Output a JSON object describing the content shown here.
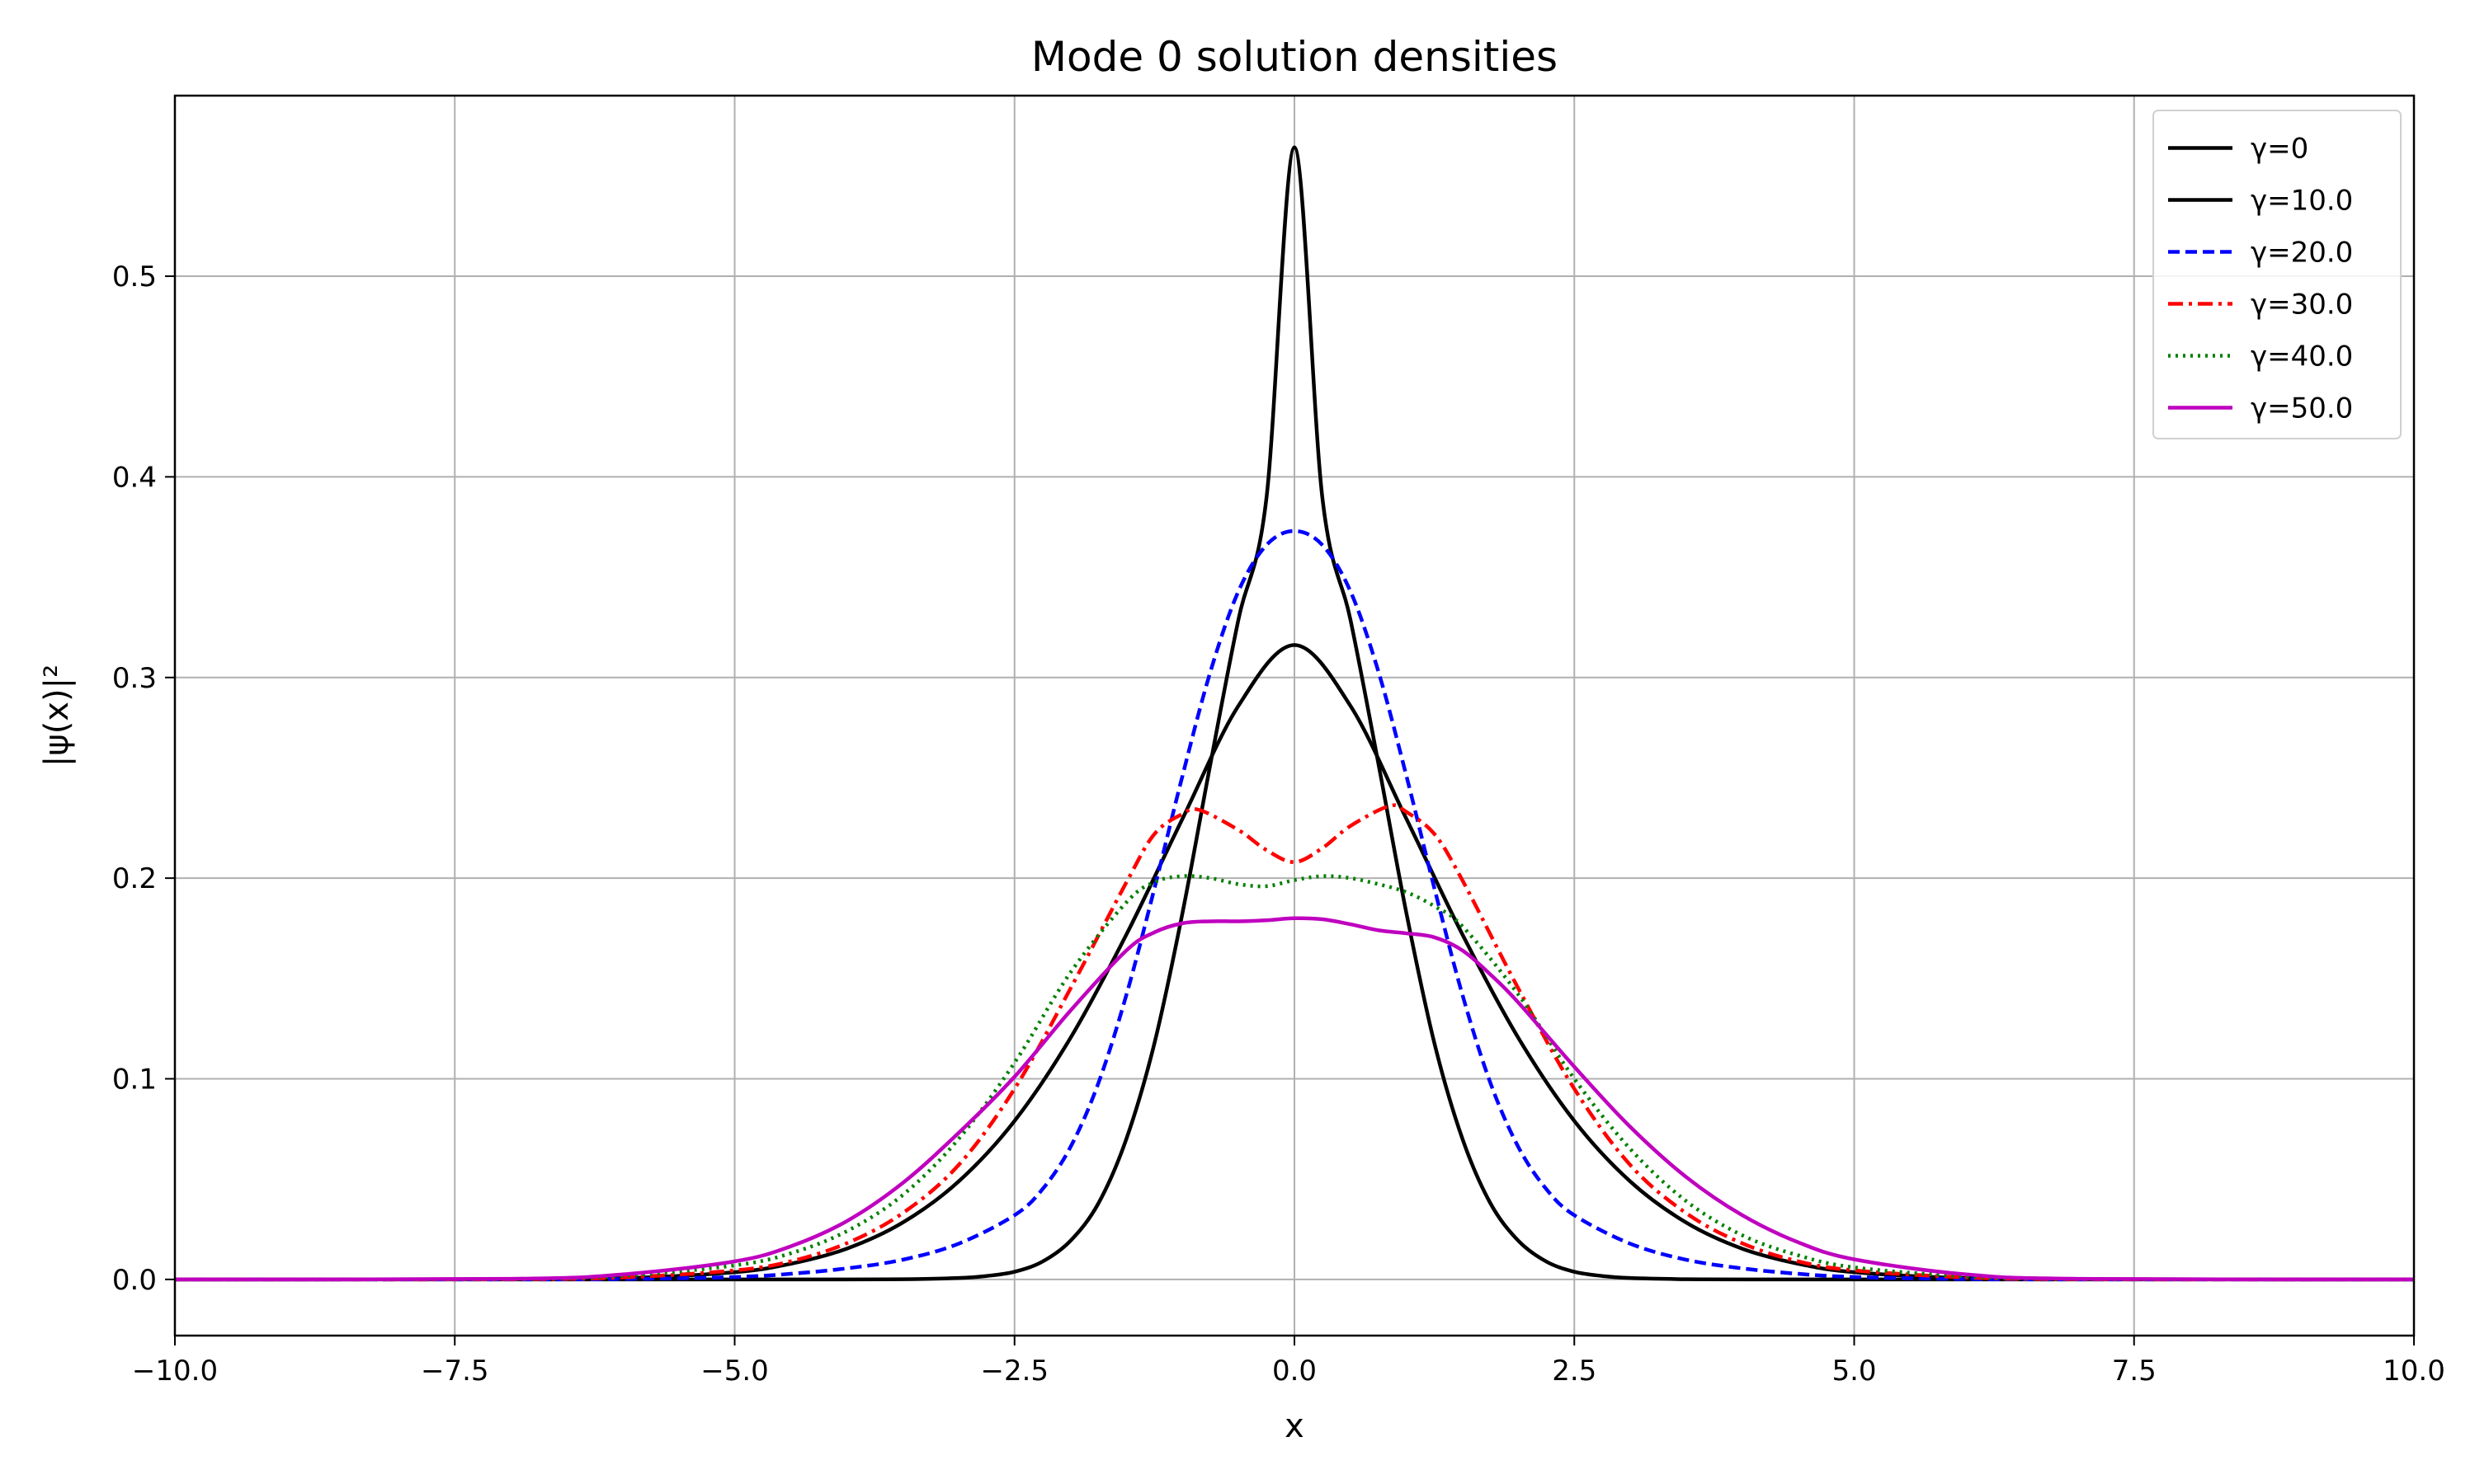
{
  "chart_data": {
    "type": "line",
    "title": "Mode 0 solution densities",
    "xlabel": "x",
    "ylabel": "|ψ(x)|²",
    "xlim": [
      -10,
      10
    ],
    "ylim": [
      -0.028,
      0.59
    ],
    "xticks": [
      -10,
      -7.5,
      -5,
      -2.5,
      0,
      2.5,
      5,
      7.5,
      10
    ],
    "xtick_labels": [
      "−10.0",
      "−7.5",
      "−5.0",
      "−2.5",
      "0.0",
      "2.5",
      "5.0",
      "7.5",
      "10.0"
    ],
    "yticks": [
      0,
      0.1,
      0.2,
      0.3,
      0.4,
      0.5
    ],
    "ytick_labels": [
      "0.0",
      "0.1",
      "0.2",
      "0.3",
      "0.4",
      "0.5"
    ],
    "grid": true,
    "legend_position": "top-right",
    "series": [
      {
        "name": "γ=0",
        "color": "#000000",
        "dash": "solid",
        "x": [
          -10,
          -6,
          -5,
          -4,
          -3.5,
          -3,
          -2.75,
          -2.5,
          -2.25,
          -2,
          -1.75,
          -1.5,
          -1.25,
          -1,
          -0.75,
          -0.5,
          -0.25,
          0,
          0.25,
          0.5,
          0.75,
          1,
          1.25,
          1.5,
          1.75,
          2,
          2.25,
          2.5,
          2.75,
          3,
          3.5,
          4,
          5,
          6,
          10
        ],
        "y": [
          0,
          0,
          0,
          0,
          0.0001,
          0.0007,
          0.0017,
          0.0038,
          0.0089,
          0.0193,
          0.038,
          0.0702,
          0.1178,
          0.1826,
          0.2571,
          0.3289,
          0.3894,
          0.5642,
          0.3894,
          0.3289,
          0.2571,
          0.1826,
          0.1178,
          0.0702,
          0.038,
          0.0193,
          0.0089,
          0.0038,
          0.0017,
          0.0007,
          0.0001,
          0,
          0,
          0,
          0
        ]
      },
      {
        "name": "γ=10.0",
        "color": "#000000",
        "dash": "solid",
        "x": [
          -10,
          -7,
          -6,
          -5,
          -4.5,
          -4,
          -3.5,
          -3,
          -2.5,
          -2,
          -1.5,
          -1,
          -0.5,
          0,
          0.5,
          1,
          1.5,
          2,
          2.5,
          3,
          3.5,
          4,
          4.5,
          5,
          6,
          7,
          10
        ],
        "y": [
          0,
          0.0001,
          0.0006,
          0.0036,
          0.0078,
          0.0153,
          0.0283,
          0.0488,
          0.079,
          0.1204,
          0.172,
          0.2296,
          0.2859,
          0.3162,
          0.2859,
          0.2296,
          0.172,
          0.1204,
          0.079,
          0.0488,
          0.0283,
          0.0153,
          0.0078,
          0.0036,
          0.0006,
          0.0001,
          0
        ]
      },
      {
        "name": "γ=20.0",
        "color": "#0000ff",
        "dash": "dashed",
        "x": [
          -10,
          -7,
          -6,
          -5,
          -4.5,
          -4,
          -3.5,
          -3,
          -2.5,
          -2.25,
          -2,
          -1.75,
          -1.5,
          -1.25,
          -1,
          -0.75,
          -0.5,
          -0.25,
          0,
          0.25,
          0.5,
          0.75,
          1,
          1.25,
          1.5,
          1.75,
          2,
          2.25,
          2.5,
          3,
          3.5,
          4,
          4.5,
          5,
          6,
          7,
          10
        ],
        "y": [
          0,
          0,
          0.0002,
          0.0012,
          0.0028,
          0.0055,
          0.0098,
          0.0178,
          0.032,
          0.045,
          0.066,
          0.098,
          0.142,
          0.195,
          0.251,
          0.303,
          0.343,
          0.366,
          0.373,
          0.366,
          0.343,
          0.303,
          0.251,
          0.195,
          0.142,
          0.098,
          0.066,
          0.045,
          0.032,
          0.0178,
          0.0098,
          0.0055,
          0.0028,
          0.0012,
          0.0002,
          0,
          0
        ]
      },
      {
        "name": "γ=30.0",
        "color": "#ff0000",
        "dash": "dashdot",
        "x": [
          -10,
          -7,
          -6,
          -5,
          -4.5,
          -4,
          -3.5,
          -3,
          -2.5,
          -2,
          -1.5,
          -1.25,
          -1,
          -0.85,
          -0.5,
          -0.25,
          0,
          0.25,
          0.5,
          0.85,
          1,
          1.25,
          1.5,
          2,
          2.5,
          3,
          3.5,
          4,
          4.5,
          5,
          6,
          7,
          10
        ],
        "y": [
          0,
          0.0001,
          0.001,
          0.0045,
          0.009,
          0.018,
          0.033,
          0.057,
          0.095,
          0.145,
          0.198,
          0.222,
          0.232,
          0.234,
          0.224,
          0.214,
          0.208,
          0.215,
          0.226,
          0.236,
          0.233,
          0.222,
          0.199,
          0.145,
          0.095,
          0.057,
          0.033,
          0.018,
          0.009,
          0.0045,
          0.001,
          0.0001,
          0
        ]
      },
      {
        "name": "γ=40.0",
        "color": "#008000",
        "dash": "dotted",
        "x": [
          -10,
          -7,
          -6,
          -5,
          -4.5,
          -4,
          -3.5,
          -3,
          -2.5,
          -2,
          -1.5,
          -1.25,
          -1,
          -0.75,
          -0.5,
          -0.25,
          0,
          0.25,
          0.5,
          0.75,
          1,
          1.25,
          1.5,
          2,
          2.5,
          3,
          3.5,
          4,
          4.5,
          5,
          6,
          7,
          10
        ],
        "y": [
          0,
          0.0002,
          0.0018,
          0.007,
          0.013,
          0.024,
          0.042,
          0.07,
          0.108,
          0.153,
          0.188,
          0.198,
          0.201,
          0.2,
          0.197,
          0.196,
          0.199,
          0.201,
          0.2,
          0.197,
          0.193,
          0.186,
          0.176,
          0.142,
          0.1,
          0.065,
          0.039,
          0.022,
          0.012,
          0.006,
          0.0015,
          0.0002,
          0
        ]
      },
      {
        "name": "γ=50.0",
        "color": "#bf00bf",
        "dash": "solid",
        "x": [
          -10,
          -7,
          -6,
          -5,
          -4.5,
          -4,
          -3.5,
          -3,
          -2.5,
          -2,
          -1.5,
          -1.25,
          -1,
          -0.75,
          -0.5,
          -0.25,
          0,
          0.25,
          0.5,
          0.75,
          1,
          1.25,
          1.5,
          1.75,
          2,
          2.5,
          3,
          3.5,
          4,
          4.5,
          5,
          6,
          7,
          10
        ],
        "y": [
          0,
          0.0003,
          0.0025,
          0.009,
          0.0165,
          0.029,
          0.048,
          0.073,
          0.101,
          0.134,
          0.164,
          0.173,
          0.1775,
          0.1785,
          0.1785,
          0.179,
          0.18,
          0.1795,
          0.177,
          0.174,
          0.1725,
          0.1705,
          0.164,
          0.152,
          0.138,
          0.106,
          0.076,
          0.051,
          0.032,
          0.0185,
          0.01,
          0.0025,
          0.0003,
          0
        ]
      }
    ]
  }
}
